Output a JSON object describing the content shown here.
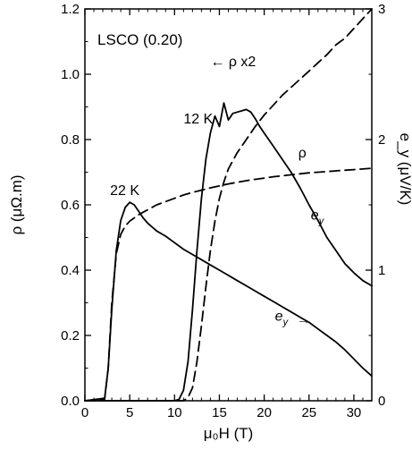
{
  "chart_data": {
    "type": "line",
    "xlabel": "μ₀H (T)",
    "ylabel_left": "ρ (μΩ.m)",
    "ylabel_right": "e_y (μV/K)",
    "xlim": [
      0,
      32
    ],
    "ylim_left": [
      0,
      1.2
    ],
    "ylim_right": [
      0,
      3
    ],
    "xticks": [
      0,
      5,
      10,
      15,
      20,
      25,
      30
    ],
    "xtick_labels": [
      "0",
      "5",
      "10",
      "15",
      "20",
      "25",
      "30"
    ],
    "yticks_left": [
      0,
      0.2,
      0.4,
      0.6,
      0.8,
      1.0,
      1.2
    ],
    "ytick_labels_left": [
      "0.0",
      "0.2",
      "0.4",
      "0.6",
      "0.8",
      "1.0",
      "1.2"
    ],
    "yticks_right": [
      0,
      1,
      2,
      3
    ],
    "ytick_labels_right": [
      "0",
      "1",
      "2",
      "3"
    ],
    "grid": false,
    "series": [
      {
        "axis": "right",
        "style": "solid",
        "x": [
          0,
          2.2,
          2.6,
          3.0,
          3.5,
          4.0,
          4.5,
          5.0,
          5.5,
          6.0,
          6.5,
          7.0,
          8.0,
          9.0,
          10.0,
          11.0,
          12.0,
          13.0,
          14.0,
          15.0,
          16.0,
          17.0,
          18.0,
          19.0,
          20.0,
          21.0,
          22.0,
          23.0,
          24.0,
          25.0,
          26.0,
          27.0,
          28.0,
          29.0,
          30.0,
          31.0,
          32.0
        ],
        "y": [
          0.0,
          0.02,
          0.25,
          0.7,
          1.15,
          1.38,
          1.48,
          1.52,
          1.5,
          1.45,
          1.4,
          1.36,
          1.3,
          1.26,
          1.21,
          1.16,
          1.12,
          1.08,
          1.04,
          1.0,
          0.96,
          0.92,
          0.88,
          0.84,
          0.8,
          0.76,
          0.72,
          0.68,
          0.64,
          0.6,
          0.55,
          0.5,
          0.45,
          0.39,
          0.32,
          0.25,
          0.19
        ]
      },
      {
        "axis": "right",
        "style": "solid",
        "x": [
          0,
          10.0,
          10.5,
          11.0,
          11.5,
          12.0,
          12.5,
          13.0,
          13.5,
          14.0,
          14.5,
          15.0,
          15.5,
          16.0,
          16.5,
          17.0,
          17.5,
          18.0,
          18.5,
          19.0,
          19.5,
          20.0,
          21.0,
          22.0,
          23.0,
          24.0,
          25.0,
          26.0,
          27.0,
          28.0,
          29.0,
          30.0,
          31.0,
          32.0
        ],
        "y": [
          0.0,
          0.0,
          0.01,
          0.08,
          0.3,
          0.7,
          1.15,
          1.55,
          1.85,
          2.05,
          2.18,
          2.1,
          2.28,
          2.15,
          2.2,
          2.21,
          2.22,
          2.23,
          2.21,
          2.16,
          2.1,
          2.05,
          1.95,
          1.85,
          1.75,
          1.63,
          1.5,
          1.38,
          1.25,
          1.15,
          1.05,
          0.98,
          0.92,
          0.88
        ]
      },
      {
        "axis": "left",
        "style": "dashed",
        "x": [
          0,
          2.2,
          2.6,
          3.0,
          3.5,
          4.0,
          4.5,
          5.0,
          5.5,
          6.0,
          7.0,
          8.0,
          9.0,
          10.0,
          11.0,
          12.0,
          13.0,
          14.0,
          15.0,
          16.0,
          17.0,
          18.0,
          19.0,
          20.0,
          21.0,
          22.0,
          23.0,
          24.0,
          25.0,
          26.0,
          27.0,
          28.0,
          29.0,
          30.0,
          31.0,
          32.0
        ],
        "y": [
          0.0,
          0.005,
          0.1,
          0.3,
          0.45,
          0.51,
          0.535,
          0.55,
          0.56,
          0.57,
          0.585,
          0.6,
          0.61,
          0.62,
          0.63,
          0.638,
          0.645,
          0.652,
          0.658,
          0.664,
          0.669,
          0.674,
          0.678,
          0.682,
          0.686,
          0.689,
          0.692,
          0.695,
          0.698,
          0.7,
          0.702,
          0.704,
          0.706,
          0.708,
          0.71,
          0.712
        ]
      },
      {
        "axis": "left",
        "style": "dashed",
        "x": [
          0,
          11.0,
          11.5,
          12.0,
          12.5,
          13.0,
          13.5,
          14.0,
          14.5,
          15.0,
          15.5,
          16.0,
          17.0,
          18.0,
          19.0,
          20.0,
          21.0,
          22.0,
          23.0,
          24.0,
          25.0,
          26.0,
          27.0,
          28.0,
          29.0,
          30.0,
          31.0,
          32.0
        ],
        "y": [
          0.0,
          0.0,
          0.01,
          0.04,
          0.12,
          0.23,
          0.35,
          0.46,
          0.55,
          0.62,
          0.67,
          0.71,
          0.76,
          0.8,
          0.84,
          0.875,
          0.905,
          0.935,
          0.96,
          0.985,
          1.01,
          1.035,
          1.06,
          1.09,
          1.11,
          1.14,
          1.17,
          1.2
        ]
      }
    ],
    "annotations": [
      {
        "text": "LSCO (0.20)",
        "x": 1.4,
        "y": 1.09,
        "class": "annot-title",
        "italic": false
      },
      {
        "text": "← ρ x2",
        "x": 14.0,
        "y": 1.025,
        "class": "annot",
        "italic": false
      },
      {
        "text": "12 K",
        "x": 11.0,
        "y": 0.85,
        "class": "annot",
        "italic": false
      },
      {
        "text": "22 K",
        "x": 2.8,
        "y": 0.63,
        "class": "annot",
        "italic": false
      },
      {
        "text": "ρ",
        "x": 23.8,
        "y": 0.745,
        "class": "annot",
        "italic": false
      },
      {
        "text": "e",
        "x": 25.2,
        "y": 0.555,
        "class": "annot-it",
        "italic": true
      },
      {
        "text": "e",
        "x": 21.2,
        "y": 0.245,
        "class": "annot-it",
        "italic": true
      },
      {
        "text": "→",
        "x": 23.6,
        "y": 0.235,
        "class": "annot",
        "italic": false
      }
    ]
  }
}
